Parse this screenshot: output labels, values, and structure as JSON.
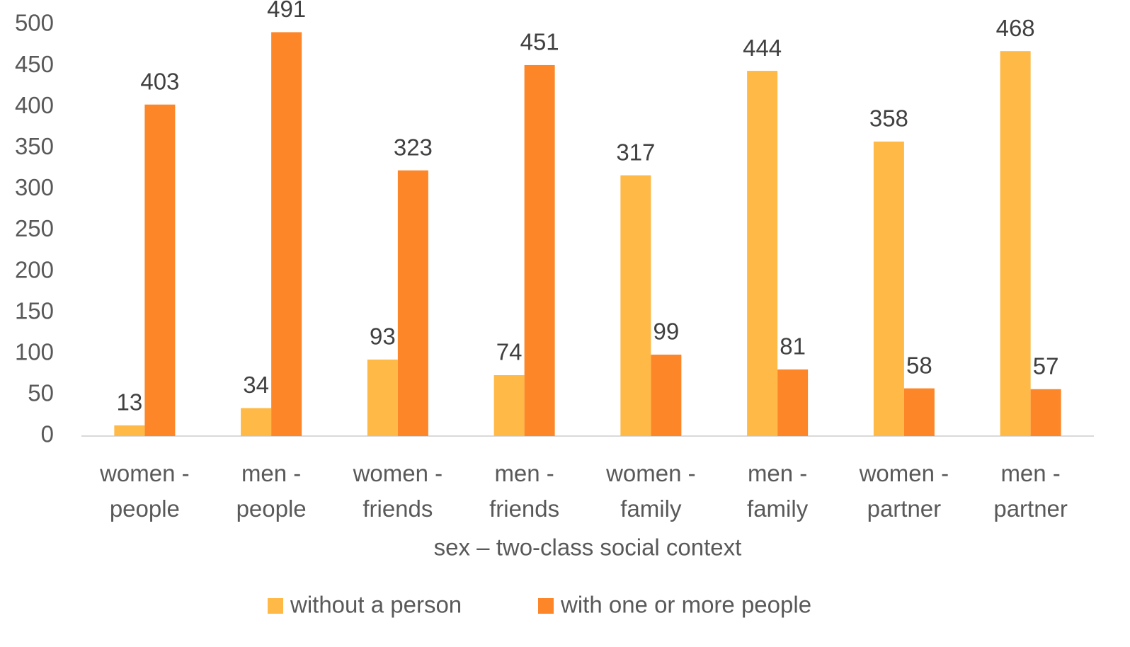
{
  "chart_data": {
    "type": "bar",
    "x_label": "sex – two-class social context",
    "categories": [
      "women - people",
      "men - people",
      "women - friends",
      "men - friends",
      "women - family",
      "men - family",
      "women - partner",
      "men - partner"
    ],
    "series": [
      {
        "name": "without a person",
        "color": "#ffb947",
        "values": [
          13,
          34,
          93,
          74,
          317,
          444,
          358,
          468
        ]
      },
      {
        "name": "with one or more people",
        "color": "#fd8628",
        "values": [
          403,
          491,
          323,
          451,
          99,
          81,
          58,
          57
        ]
      }
    ],
    "ylim": [
      0,
      500
    ],
    "yticks": [
      0,
      50,
      100,
      150,
      200,
      250,
      300,
      350,
      400,
      450,
      500
    ],
    "grid": false,
    "legend": "bottom"
  }
}
